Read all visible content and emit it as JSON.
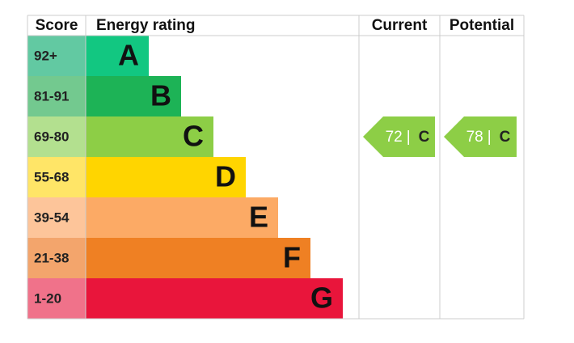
{
  "header": {
    "score": "Score",
    "rating": "Energy rating",
    "current": "Current",
    "potential": "Potential"
  },
  "rows": [
    {
      "score": "92+",
      "letter": "A",
      "color": "#12c781",
      "score_color": "#62c9a2"
    },
    {
      "score": "81-91",
      "letter": "B",
      "color": "#1db356",
      "score_color": "#73c98f"
    },
    {
      "score": "69-80",
      "letter": "C",
      "color": "#8dce46",
      "score_color": "#b3e08f"
    },
    {
      "score": "55-68",
      "letter": "D",
      "color": "#ffd500",
      "score_color": "#ffe567"
    },
    {
      "score": "39-54",
      "letter": "E",
      "color": "#fcaa65",
      "score_color": "#fdc59a"
    },
    {
      "score": "21-38",
      "letter": "F",
      "color": "#ef8023",
      "score_color": "#f3a56c"
    },
    {
      "score": "1-20",
      "letter": "G",
      "color": "#e9153b",
      "score_color": "#f0728a"
    }
  ],
  "current": {
    "score": 72,
    "separator": "|",
    "rating": "C",
    "row": 2
  },
  "potential": {
    "score": 78,
    "separator": "|",
    "rating": "C",
    "row": 2
  }
}
